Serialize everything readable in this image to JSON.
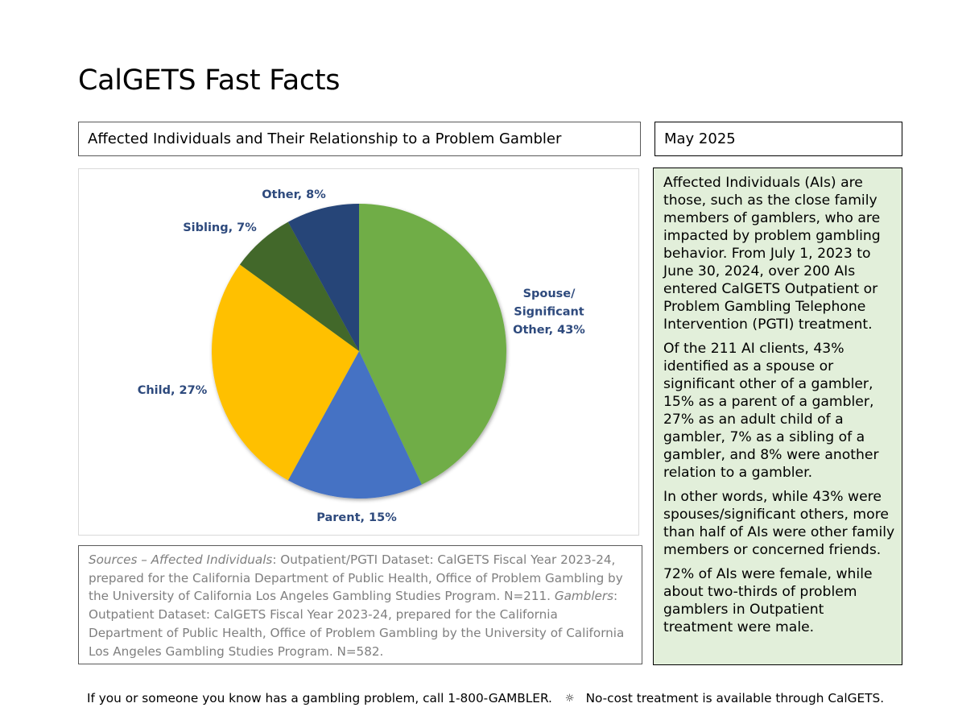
{
  "title": "CalGETS Fast Facts",
  "chart_title": "Affected Individuals and Their Relationship to a Problem Gambler",
  "date": "May 2025",
  "chart_data": {
    "type": "pie",
    "title": "Affected Individuals and Their Relationship to a Problem Gambler",
    "slices": [
      {
        "label": "Spouse/ Significant Other",
        "value": 43,
        "display": [
          "Spouse/",
          "Significant",
          "Other, 43%"
        ],
        "color": "#70ad47"
      },
      {
        "label": "Parent",
        "value": 15,
        "display": [
          "Parent, 15%"
        ],
        "color": "#4472c4"
      },
      {
        "label": "Child",
        "value": 27,
        "display": [
          "Child, 27%"
        ],
        "color": "#ffc000"
      },
      {
        "label": "Sibling",
        "value": 7,
        "display": [
          "Sibling, 7%"
        ],
        "color": "#43682b"
      },
      {
        "label": "Other",
        "value": 8,
        "display": [
          "Other, 8%"
        ],
        "color": "#264478"
      }
    ],
    "label_color": "#2e4a7d"
  },
  "side_panel": {
    "paragraphs": [
      "Affected Individuals (AIs) are those, such as the close family members of gamblers, who are impacted by problem gambling behavior. From July 1, 2023 to June 30, 2024, over 200 AIs entered CalGETS Outpatient or Problem Gambling Telephone Intervention (PGTI) treatment.",
      "Of the 211 AI clients, 43% identified as a spouse or significant other of a gambler, 15% as a parent of a gambler, 27% as an adult child of a gambler, 7% as a sibling of a gambler, and 8% were another relation to a gambler.",
      "In other words, while 43% were spouses/significant others, more than half of AIs were other family members or concerned friends.",
      "72% of AIs were female, while about two-thirds of problem gamblers in Outpatient treatment were male."
    ],
    "background": "#e2efda"
  },
  "sources": {
    "lead_italic": "Sources – Affected Individuals",
    "text1": ": Outpatient/PGTI Dataset: CalGETS Fiscal Year 2023-24, prepared for the California Department of Public Health, Office of Problem Gambling by the University of California Los Angeles Gambling Studies Program.  N=211. ",
    "italic2": "Gamblers",
    "text2": ": Outpatient Dataset: CalGETS Fiscal Year 2023-24, prepared for the California Department of Public Health, Office of Problem Gambling by the University of California Los Angeles Gambling Studies Program.  N=582."
  },
  "footer": {
    "left": "If you or someone you know has a gambling problem, call 1-800-GAMBLER.",
    "separator_icon": "gear-icon",
    "right": "No-cost treatment is available through CalGETS."
  }
}
